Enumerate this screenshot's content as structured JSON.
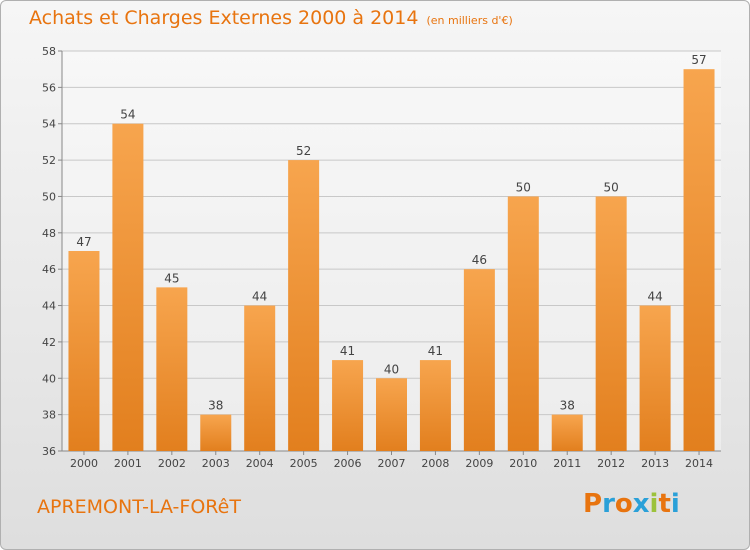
{
  "page": {
    "title": "Achats et Charges Externes 2000 à 2014",
    "subtitle": "(en milliers d'€)",
    "place": "APREMONT-LA-FORêT",
    "brand": {
      "text": "Proxiti",
      "letter_colors": [
        "#e8740f",
        "#2aa0d8",
        "#e8740f",
        "#2aa0d8",
        "#9cc23c",
        "#e8740f",
        "#2aa0d8"
      ]
    }
  },
  "colors": {
    "accent": "#e8740f",
    "bar_light": "#f7a54e",
    "bar_dark": "#e27f1e",
    "grid": "#c8c8c8",
    "tick_text": "#444444"
  },
  "chart_data": {
    "type": "bar",
    "title": "Achats et Charges Externes 2000 à 2014",
    "subtitle": "(en milliers d'€)",
    "categories": [
      "2000",
      "2001",
      "2002",
      "2003",
      "2004",
      "2005",
      "2006",
      "2007",
      "2008",
      "2009",
      "2010",
      "2011",
      "2012",
      "2013",
      "2014"
    ],
    "values": [
      47,
      54,
      45,
      38,
      44,
      52,
      41,
      40,
      41,
      46,
      50,
      38,
      50,
      44,
      57
    ],
    "data_labels": [
      "47",
      "54",
      "45",
      "38",
      "44",
      "52",
      "41",
      "40",
      "41",
      "46",
      "50",
      "38",
      "50",
      "44",
      "57"
    ],
    "ylim": [
      36,
      58
    ],
    "yticks": [
      36,
      38,
      40,
      42,
      44,
      46,
      48,
      50,
      52,
      54,
      56,
      58
    ],
    "grid": true,
    "legend": "none"
  }
}
